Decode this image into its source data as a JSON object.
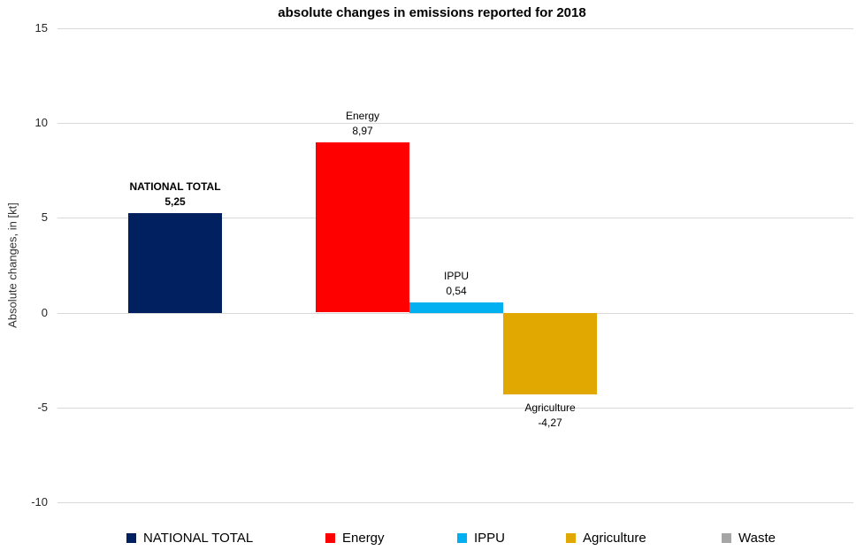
{
  "chart_data": {
    "type": "bar",
    "title": "absolute changes in emissions reported for 2018",
    "ylabel": "Absolute changes, in [kt]",
    "ylim": [
      -10,
      15
    ],
    "yticks": [
      15,
      10,
      5,
      0,
      -5,
      -10
    ],
    "ytick_labels": [
      "15",
      "10",
      "5",
      "0",
      "-5",
      "-10"
    ],
    "grid": "horizontal",
    "grid_color": "#D9D9D9",
    "legend_position": "bottom",
    "categories": [
      "NATIONAL TOTAL",
      "Energy",
      "IPPU",
      "Agriculture",
      "Waste"
    ],
    "series": [
      {
        "name": "NATIONAL TOTAL",
        "value": 5.25,
        "value_label": "5,25",
        "color": "#002060",
        "label_bold": true
      },
      {
        "name": "Energy",
        "value": 8.97,
        "value_label": "8,97",
        "color": "#FF0000",
        "label_bold": false
      },
      {
        "name": "IPPU",
        "value": 0.54,
        "value_label": "0,54",
        "color": "#00B0F0",
        "label_bold": false
      },
      {
        "name": "Agriculture",
        "value": -4.27,
        "value_label": "-4,27",
        "color": "#E0A800",
        "label_bold": false
      },
      {
        "name": "Waste",
        "value": null,
        "value_label": "",
        "color": "#A6A6A6",
        "label_bold": false
      }
    ]
  }
}
